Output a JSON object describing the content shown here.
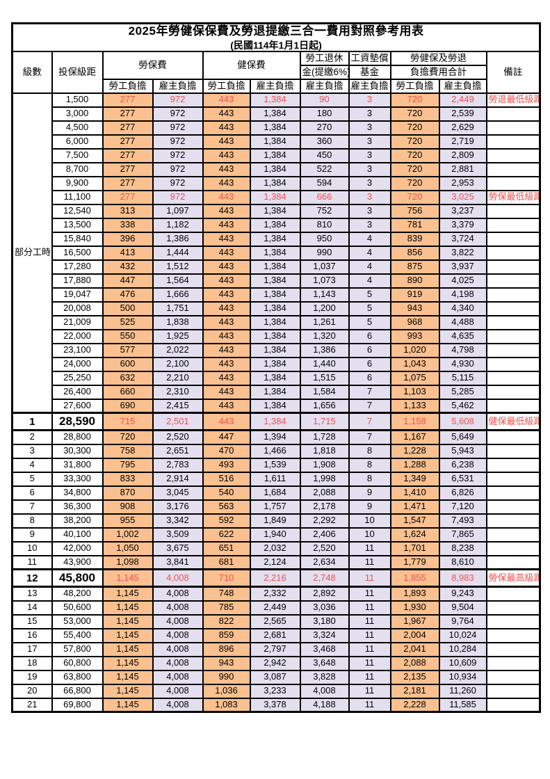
{
  "title": "2025年勞健保保費及勞退提繳三合一費用對照參考用表",
  "subtitle": "(民國114年1月1日起)",
  "header": {
    "level": "級數",
    "bracket": "投保級距",
    "labor_group": "勞保費",
    "health_group": "健保費",
    "pension_line1": "勞工退休",
    "pension_line2": "金(提繳6%)",
    "wage_fund_line1": "工資墊償",
    "wage_fund_line2": "基金",
    "total_line1": "勞健保及勞退",
    "total_line2": "負擔費用合計",
    "remark": "備註",
    "employee_label": "勞工負擔",
    "employer_label": "雇主負擔"
  },
  "part_time_label": "部分工時",
  "part_time_rowspan": 23,
  "colors": {
    "employee_bg": "#FAC08F",
    "employer_bg": "#E3DFEF",
    "red_text": "#F05050",
    "border": "#000000"
  },
  "column_types": [
    "emp",
    "er",
    "emp",
    "er",
    "er",
    "er",
    "emp",
    "er"
  ],
  "rows": [
    {
      "level": "",
      "bracket": "1,500",
      "values": [
        "277",
        "972",
        "443",
        "1,384",
        "90",
        "3",
        "720",
        "2,449"
      ],
      "remark": "勞退最低級距",
      "red": true,
      "emphasized": false
    },
    {
      "level": "",
      "bracket": "3,000",
      "values": [
        "277",
        "972",
        "443",
        "1,384",
        "180",
        "3",
        "720",
        "2,539"
      ],
      "remark": "",
      "red": false,
      "emphasized": false
    },
    {
      "level": "",
      "bracket": "4,500",
      "values": [
        "277",
        "972",
        "443",
        "1,384",
        "270",
        "3",
        "720",
        "2,629"
      ],
      "remark": "",
      "red": false,
      "emphasized": false
    },
    {
      "level": "",
      "bracket": "6,000",
      "values": [
        "277",
        "972",
        "443",
        "1,384",
        "360",
        "3",
        "720",
        "2,719"
      ],
      "remark": "",
      "red": false,
      "emphasized": false
    },
    {
      "level": "",
      "bracket": "7,500",
      "values": [
        "277",
        "972",
        "443",
        "1,384",
        "450",
        "3",
        "720",
        "2,809"
      ],
      "remark": "",
      "red": false,
      "emphasized": false
    },
    {
      "level": "",
      "bracket": "8,700",
      "values": [
        "277",
        "972",
        "443",
        "1,384",
        "522",
        "3",
        "720",
        "2,881"
      ],
      "remark": "",
      "red": false,
      "emphasized": false
    },
    {
      "level": "",
      "bracket": "9,900",
      "values": [
        "277",
        "972",
        "443",
        "1,384",
        "594",
        "3",
        "720",
        "2,953"
      ],
      "remark": "",
      "red": false,
      "emphasized": false
    },
    {
      "level": "",
      "bracket": "11,100",
      "values": [
        "277",
        "972",
        "443",
        "1,384",
        "666",
        "3",
        "720",
        "3,025"
      ],
      "remark": "勞保最低級距",
      "red": true,
      "emphasized": false
    },
    {
      "level": "",
      "bracket": "12,540",
      "values": [
        "313",
        "1,097",
        "443",
        "1,384",
        "752",
        "3",
        "756",
        "3,237"
      ],
      "remark": "",
      "red": false,
      "emphasized": false
    },
    {
      "level": "",
      "bracket": "13,500",
      "values": [
        "338",
        "1,182",
        "443",
        "1,384",
        "810",
        "3",
        "781",
        "3,379"
      ],
      "remark": "",
      "red": false,
      "emphasized": false
    },
    {
      "level": "",
      "bracket": "15,840",
      "values": [
        "396",
        "1,386",
        "443",
        "1,384",
        "950",
        "4",
        "839",
        "3,724"
      ],
      "remark": "",
      "red": false,
      "emphasized": false
    },
    {
      "level": "",
      "bracket": "16,500",
      "values": [
        "413",
        "1,444",
        "443",
        "1,384",
        "990",
        "4",
        "856",
        "3,822"
      ],
      "remark": "",
      "red": false,
      "emphasized": false
    },
    {
      "level": "",
      "bracket": "17,280",
      "values": [
        "432",
        "1,512",
        "443",
        "1,384",
        "1,037",
        "4",
        "875",
        "3,937"
      ],
      "remark": "",
      "red": false,
      "emphasized": false
    },
    {
      "level": "",
      "bracket": "17,880",
      "values": [
        "447",
        "1,564",
        "443",
        "1,384",
        "1,073",
        "4",
        "890",
        "4,025"
      ],
      "remark": "",
      "red": false,
      "emphasized": false
    },
    {
      "level": "",
      "bracket": "19,047",
      "values": [
        "476",
        "1,666",
        "443",
        "1,384",
        "1,143",
        "5",
        "919",
        "4,198"
      ],
      "remark": "",
      "red": false,
      "emphasized": false
    },
    {
      "level": "",
      "bracket": "20,008",
      "values": [
        "500",
        "1,751",
        "443",
        "1,384",
        "1,200",
        "5",
        "943",
        "4,340"
      ],
      "remark": "",
      "red": false,
      "emphasized": false
    },
    {
      "level": "",
      "bracket": "21,009",
      "values": [
        "525",
        "1,838",
        "443",
        "1,384",
        "1,261",
        "5",
        "968",
        "4,488"
      ],
      "remark": "",
      "red": false,
      "emphasized": false
    },
    {
      "level": "",
      "bracket": "22,000",
      "values": [
        "550",
        "1,925",
        "443",
        "1,384",
        "1,320",
        "6",
        "993",
        "4,635"
      ],
      "remark": "",
      "red": false,
      "emphasized": false
    },
    {
      "level": "",
      "bracket": "23,100",
      "values": [
        "577",
        "2,022",
        "443",
        "1,384",
        "1,386",
        "6",
        "1,020",
        "4,798"
      ],
      "remark": "",
      "red": false,
      "emphasized": false
    },
    {
      "level": "",
      "bracket": "24,000",
      "values": [
        "600",
        "2,100",
        "443",
        "1,384",
        "1,440",
        "6",
        "1,043",
        "4,930"
      ],
      "remark": "",
      "red": false,
      "emphasized": false
    },
    {
      "level": "",
      "bracket": "25,250",
      "values": [
        "632",
        "2,210",
        "443",
        "1,384",
        "1,515",
        "6",
        "1,075",
        "5,115"
      ],
      "remark": "",
      "red": false,
      "emphasized": false
    },
    {
      "level": "",
      "bracket": "26,400",
      "values": [
        "660",
        "2,310",
        "443",
        "1,384",
        "1,584",
        "7",
        "1,103",
        "5,285"
      ],
      "remark": "",
      "red": false,
      "emphasized": false
    },
    {
      "level": "",
      "bracket": "27,600",
      "values": [
        "690",
        "2,415",
        "443",
        "1,384",
        "1,656",
        "7",
        "1,133",
        "5,462"
      ],
      "remark": "",
      "red": false,
      "emphasized": false
    },
    {
      "level": "1",
      "bracket": "28,590",
      "values": [
        "715",
        "2,501",
        "443",
        "1,384",
        "1,715",
        "7",
        "1,158",
        "5,608"
      ],
      "remark": "健保最低級距",
      "red": true,
      "emphasized": true
    },
    {
      "level": "2",
      "bracket": "28,800",
      "values": [
        "720",
        "2,520",
        "447",
        "1,394",
        "1,728",
        "7",
        "1,167",
        "5,649"
      ],
      "remark": "",
      "red": false,
      "emphasized": false
    },
    {
      "level": "3",
      "bracket": "30,300",
      "values": [
        "758",
        "2,651",
        "470",
        "1,466",
        "1,818",
        "8",
        "1,228",
        "5,943"
      ],
      "remark": "",
      "red": false,
      "emphasized": false
    },
    {
      "level": "4",
      "bracket": "31,800",
      "values": [
        "795",
        "2,783",
        "493",
        "1,539",
        "1,908",
        "8",
        "1,288",
        "6,238"
      ],
      "remark": "",
      "red": false,
      "emphasized": false
    },
    {
      "level": "5",
      "bracket": "33,300",
      "values": [
        "833",
        "2,914",
        "516",
        "1,611",
        "1,998",
        "8",
        "1,349",
        "6,531"
      ],
      "remark": "",
      "red": false,
      "emphasized": false
    },
    {
      "level": "6",
      "bracket": "34,800",
      "values": [
        "870",
        "3,045",
        "540",
        "1,684",
        "2,088",
        "9",
        "1,410",
        "6,826"
      ],
      "remark": "",
      "red": false,
      "emphasized": false
    },
    {
      "level": "7",
      "bracket": "36,300",
      "values": [
        "908",
        "3,176",
        "563",
        "1,757",
        "2,178",
        "9",
        "1,471",
        "7,120"
      ],
      "remark": "",
      "red": false,
      "emphasized": false
    },
    {
      "level": "8",
      "bracket": "38,200",
      "values": [
        "955",
        "3,342",
        "592",
        "1,849",
        "2,292",
        "10",
        "1,547",
        "7,493"
      ],
      "remark": "",
      "red": false,
      "emphasized": false
    },
    {
      "level": "9",
      "bracket": "40,100",
      "values": [
        "1,002",
        "3,509",
        "622",
        "1,940",
        "2,406",
        "10",
        "1,624",
        "7,865"
      ],
      "remark": "",
      "red": false,
      "emphasized": false
    },
    {
      "level": "10",
      "bracket": "42,000",
      "values": [
        "1,050",
        "3,675",
        "651",
        "2,032",
        "2,520",
        "11",
        "1,701",
        "8,238"
      ],
      "remark": "",
      "red": false,
      "emphasized": false
    },
    {
      "level": "11",
      "bracket": "43,900",
      "values": [
        "1,098",
        "3,841",
        "681",
        "2,124",
        "2,634",
        "11",
        "1,779",
        "8,610"
      ],
      "remark": "",
      "red": false,
      "emphasized": false
    },
    {
      "level": "12",
      "bracket": "45,800",
      "values": [
        "1,145",
        "4,008",
        "710",
        "2,216",
        "2,748",
        "11",
        "1,855",
        "8,983"
      ],
      "remark": "勞保最高級距",
      "red": true,
      "emphasized": true
    },
    {
      "level": "13",
      "bracket": "48,200",
      "values": [
        "1,145",
        "4,008",
        "748",
        "2,332",
        "2,892",
        "11",
        "1,893",
        "9,243"
      ],
      "remark": "",
      "red": false,
      "emphasized": false
    },
    {
      "level": "14",
      "bracket": "50,600",
      "values": [
        "1,145",
        "4,008",
        "785",
        "2,449",
        "3,036",
        "11",
        "1,930",
        "9,504"
      ],
      "remark": "",
      "red": false,
      "emphasized": false
    },
    {
      "level": "15",
      "bracket": "53,000",
      "values": [
        "1,145",
        "4,008",
        "822",
        "2,565",
        "3,180",
        "11",
        "1,967",
        "9,764"
      ],
      "remark": "",
      "red": false,
      "emphasized": false
    },
    {
      "level": "16",
      "bracket": "55,400",
      "values": [
        "1,145",
        "4,008",
        "859",
        "2,681",
        "3,324",
        "11",
        "2,004",
        "10,024"
      ],
      "remark": "",
      "red": false,
      "emphasized": false
    },
    {
      "level": "17",
      "bracket": "57,800",
      "values": [
        "1,145",
        "4,008",
        "896",
        "2,797",
        "3,468",
        "11",
        "2,041",
        "10,284"
      ],
      "remark": "",
      "red": false,
      "emphasized": false
    },
    {
      "level": "18",
      "bracket": "60,800",
      "values": [
        "1,145",
        "4,008",
        "943",
        "2,942",
        "3,648",
        "11",
        "2,088",
        "10,609"
      ],
      "remark": "",
      "red": false,
      "emphasized": false
    },
    {
      "level": "19",
      "bracket": "63,800",
      "values": [
        "1,145",
        "4,008",
        "990",
        "3,087",
        "3,828",
        "11",
        "2,135",
        "10,934"
      ],
      "remark": "",
      "red": false,
      "emphasized": false
    },
    {
      "level": "20",
      "bracket": "66,800",
      "values": [
        "1,145",
        "4,008",
        "1,036",
        "3,233",
        "4,008",
        "11",
        "2,181",
        "11,260"
      ],
      "remark": "",
      "red": false,
      "emphasized": false
    },
    {
      "level": "21",
      "bracket": "69,800",
      "values": [
        "1,145",
        "4,008",
        "1,083",
        "3,378",
        "4,188",
        "11",
        "2,228",
        "11,585"
      ],
      "remark": "",
      "red": false,
      "emphasized": false
    }
  ]
}
